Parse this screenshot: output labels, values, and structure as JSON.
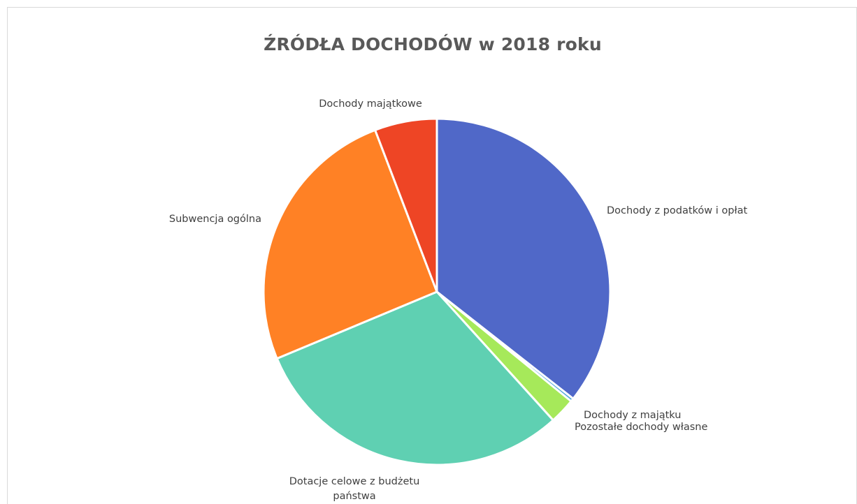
{
  "chart_data": {
    "type": "pie",
    "title": "ŹRÓDŁA DOCHODÓW w 2018 roku",
    "legend": "none",
    "slices": [
      {
        "label": "Dochody z podatków i opłat",
        "value": 35.6,
        "color": "#5068C8"
      },
      {
        "label": "Dochody z majątku",
        "value": 0.3,
        "color": "#4BA3D9"
      },
      {
        "label": "Pozostałe dochody własne",
        "value": 2.4,
        "color": "#A6E95A"
      },
      {
        "label": "Dotacje celowe z budżetu państwa",
        "value": 30.4,
        "color": "#5FD0B2"
      },
      {
        "label": "Subwencja ogólna",
        "value": 25.5,
        "color": "#FF8125"
      },
      {
        "label": "Dochody majątkowe",
        "value": 5.8,
        "color": "#EE4525"
      }
    ]
  }
}
